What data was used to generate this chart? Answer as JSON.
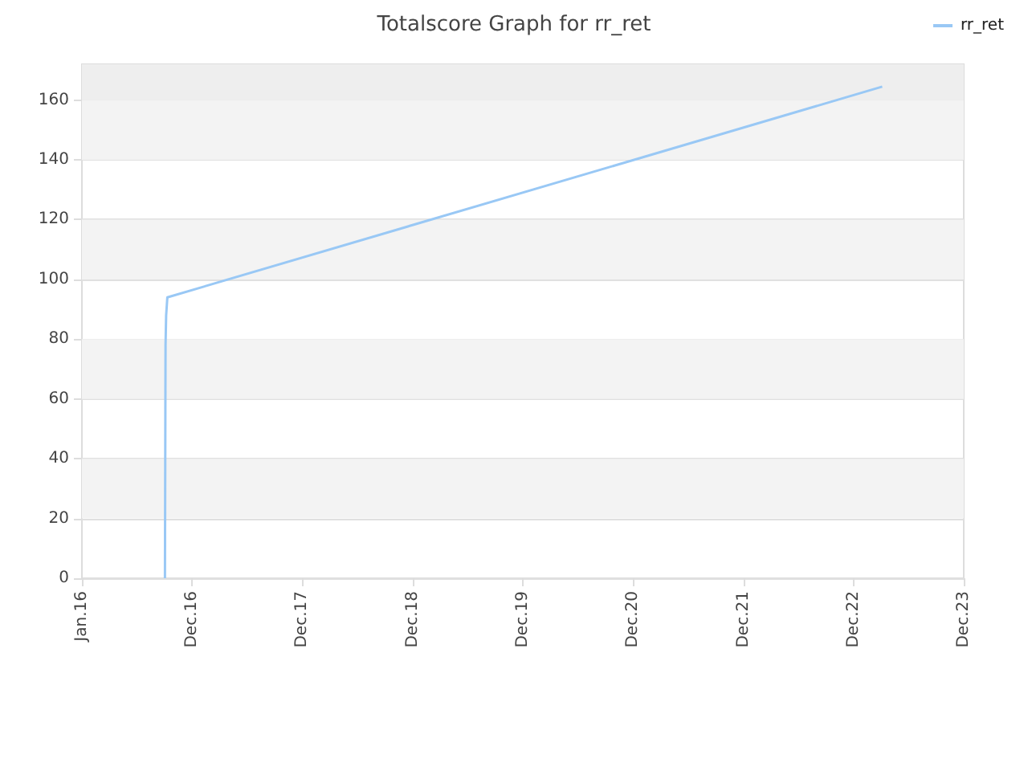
{
  "chart_data": {
    "type": "line",
    "title": "Totalscore Graph for rr_ret",
    "x": [
      "2016-10-02",
      "2016-10-04",
      "2016-10-06",
      "2016-10-10",
      "2023-04-05"
    ],
    "series": [
      {
        "name": "rr_ret",
        "color": "#99c8f5",
        "values": [
          0,
          78,
          88,
          94,
          164.5
        ]
      }
    ],
    "xlim": [
      "2016-01-01",
      "2023-12-31"
    ],
    "xticks": [
      {
        "value": "2016-01-01",
        "label": "Jan.16"
      },
      {
        "value": "2016-12-31",
        "label": "Dec.16"
      },
      {
        "value": "2017-12-31",
        "label": "Dec.17"
      },
      {
        "value": "2018-12-31",
        "label": "Dec.18"
      },
      {
        "value": "2019-12-31",
        "label": "Dec.19"
      },
      {
        "value": "2020-12-31",
        "label": "Dec.20"
      },
      {
        "value": "2021-12-31",
        "label": "Dec.21"
      },
      {
        "value": "2022-12-31",
        "label": "Dec.22"
      },
      {
        "value": "2023-12-31",
        "label": "Dec.23"
      }
    ],
    "ylim": [
      0,
      172
    ],
    "yticks": [
      0,
      20,
      40,
      60,
      80,
      100,
      120,
      140,
      160
    ],
    "bands": [
      {
        "axis": "y",
        "from": 20,
        "to": 40,
        "color": "#f3f3f3"
      },
      {
        "axis": "y",
        "from": 60,
        "to": 80,
        "color": "#f3f3f3"
      },
      {
        "axis": "y",
        "from": 100,
        "to": 120,
        "color": "#f3f3f3"
      },
      {
        "axis": "y",
        "from": 140,
        "to": 160,
        "color": "#f3f3f3"
      },
      {
        "axis": "y",
        "from": 160,
        "to": 172,
        "color": "#eeeeee"
      }
    ],
    "grid": "y",
    "legend": "top right",
    "marker": "none"
  }
}
